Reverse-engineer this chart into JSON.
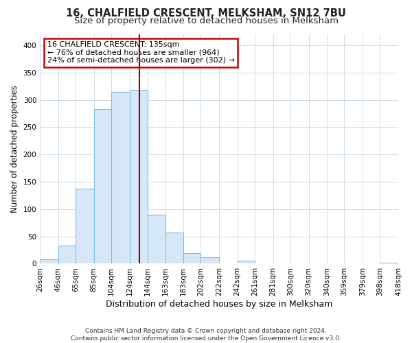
{
  "title": "16, CHALFIELD CRESCENT, MELKSHAM, SN12 7BU",
  "subtitle": "Size of property relative to detached houses in Melksham",
  "xlabel": "Distribution of detached houses by size in Melksham",
  "ylabel": "Number of detached properties",
  "footer_line1": "Contains HM Land Registry data © Crown copyright and database right 2024.",
  "footer_line2": "Contains public sector information licensed under the Open Government Licence v3.0.",
  "bar_edges": [
    26,
    46,
    65,
    85,
    104,
    124,
    144,
    163,
    183,
    202,
    222,
    242,
    261,
    281,
    300,
    320,
    340,
    359,
    379,
    398,
    418
  ],
  "bar_heights": [
    8,
    33,
    138,
    283,
    315,
    318,
    90,
    57,
    20,
    12,
    1,
    5,
    1,
    0,
    1,
    0,
    0,
    0,
    0,
    2
  ],
  "bar_color": "#d6e8f7",
  "bar_edgecolor": "#7dbde8",
  "property_line_x": 135,
  "property_line_color": "#990000",
  "annot_line1": "16 CHALFIELD CRESCENT: 135sqm",
  "annot_line2": "← 76% of detached houses are smaller (964)",
  "annot_line3": "24% of semi-detached houses are larger (302) →",
  "annotation_box_edgecolor": "#cc0000",
  "ylim": [
    0,
    420
  ],
  "yticks": [
    0,
    50,
    100,
    150,
    200,
    250,
    300,
    350,
    400
  ],
  "bg_color": "#ffffff",
  "plot_bg_color": "#ffffff",
  "grid_color": "#d0dce8",
  "title_fontsize": 10.5,
  "subtitle_fontsize": 9.5,
  "xlabel_fontsize": 9,
  "ylabel_fontsize": 8.5,
  "tick_fontsize": 7.5,
  "annot_fontsize": 8,
  "footer_fontsize": 6.5
}
